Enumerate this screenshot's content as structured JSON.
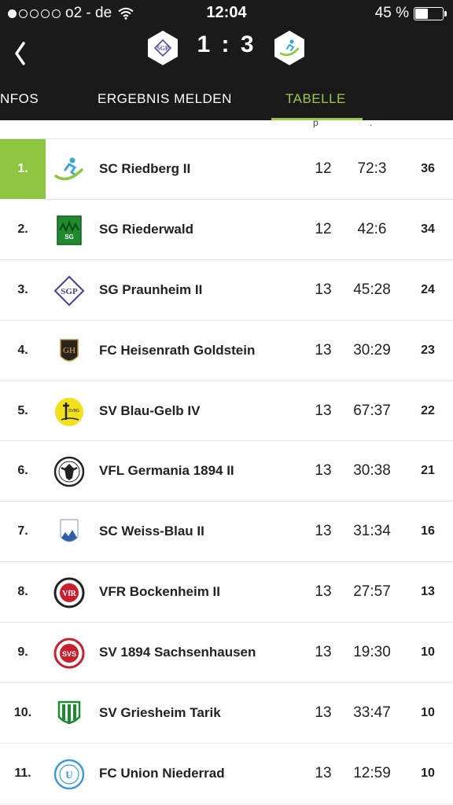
{
  "status_bar": {
    "carrier": "o2 - de",
    "time": "12:04",
    "battery_text": "45 %",
    "battery_level": 0.45,
    "signal_dots_filled": 1,
    "signal_dots_total": 5
  },
  "match": {
    "score": "1 : 3",
    "home_logo_icon": "sg-praunheim-crest-icon",
    "away_logo_icon": "sc-riedberg-crest-icon"
  },
  "tabs": [
    {
      "label": "NFOS"
    },
    {
      "label": "ERGEBNIS MELDEN"
    },
    {
      "label": "TABELLE",
      "active": true
    }
  ],
  "colors": {
    "accent": "#9cc94a",
    "header_bg": "#1a1a1a",
    "rank_highlight": "#8fc641"
  },
  "table_header_remnant": {
    "games": "p",
    "goals": "."
  },
  "table": {
    "rows": [
      {
        "rank": "1.",
        "team": "SC Riedberg II",
        "games": "12",
        "goals": "72:3",
        "points": "36",
        "logo_icon": "runner-swoosh-icon"
      },
      {
        "rank": "2.",
        "team": "SG Riederwald",
        "games": "12",
        "goals": "42:6",
        "points": "34",
        "logo_icon": "green-square-crest-icon"
      },
      {
        "rank": "3.",
        "team": "SG Praunheim II",
        "games": "13",
        "goals": "45:28",
        "points": "24",
        "logo_icon": "sgp-diamond-crest-icon"
      },
      {
        "rank": "4.",
        "team": "FC Heisenrath Goldstein",
        "games": "13",
        "goals": "30:29",
        "points": "23",
        "logo_icon": "dark-shield-crest-icon"
      },
      {
        "rank": "5.",
        "team": "SV Blau-Gelb IV",
        "games": "13",
        "goals": "67:37",
        "points": "22",
        "logo_icon": "yellow-circle-crest-icon"
      },
      {
        "rank": "6.",
        "team": "VFL Germania 1894 II",
        "games": "13",
        "goals": "30:38",
        "points": "21",
        "logo_icon": "eagle-crest-icon"
      },
      {
        "rank": "7.",
        "team": "SC Weiss-Blau II",
        "games": "13",
        "goals": "31:34",
        "points": "16",
        "logo_icon": "blue-white-shield-icon"
      },
      {
        "rank": "8.",
        "team": "VFR Bockenheim II",
        "games": "13",
        "goals": "27:57",
        "points": "13",
        "logo_icon": "vfr-round-crest-icon"
      },
      {
        "rank": "9.",
        "team": "SV 1894 Sachsenhausen",
        "games": "13",
        "goals": "19:30",
        "points": "10",
        "logo_icon": "svs-red-circle-icon"
      },
      {
        "rank": "10.",
        "team": "SV Griesheim Tarik",
        "games": "13",
        "goals": "33:47",
        "points": "10",
        "logo_icon": "green-white-shield-icon"
      },
      {
        "rank": "11.",
        "team": "FC Union Niederrad",
        "games": "13",
        "goals": "12:59",
        "points": "10",
        "logo_icon": "blue-round-crest-icon"
      }
    ]
  }
}
